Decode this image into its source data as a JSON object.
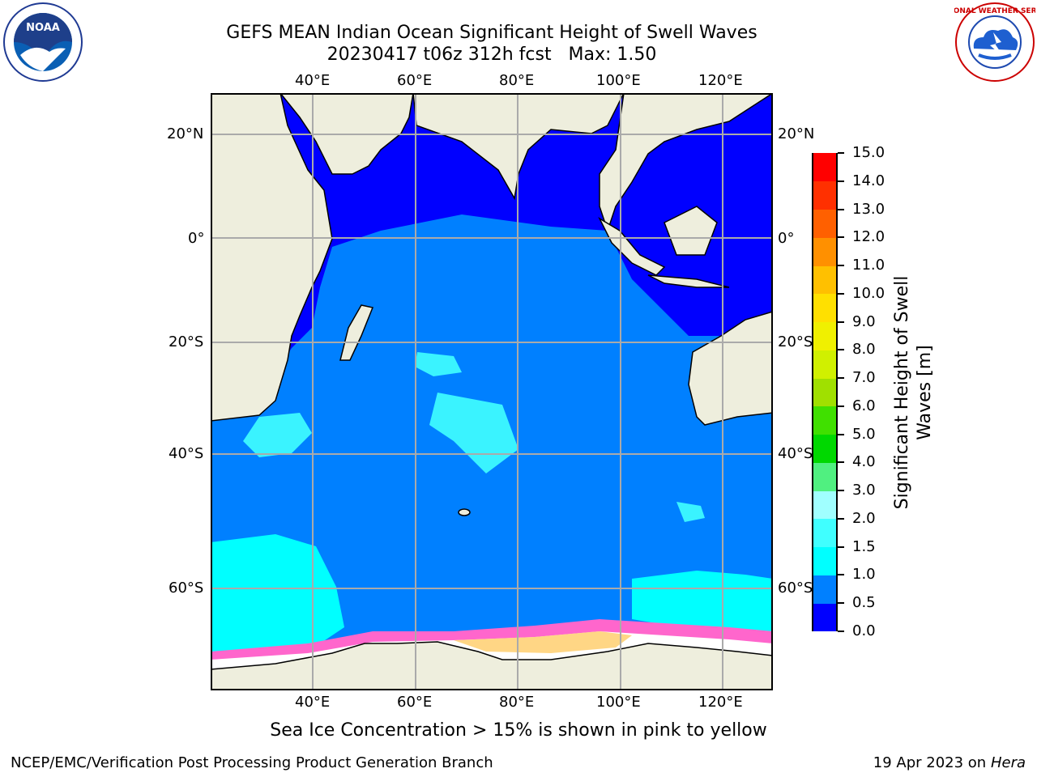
{
  "title": {
    "line1": "GEFS MEAN Indian Ocean Significant Height of Swell Waves",
    "line2": "20230417 t06z 312h fcst   Max: 1.50"
  },
  "logos": {
    "left_text": "NOAA",
    "right_text": "NATIONAL WEATHER SERVICE"
  },
  "map": {
    "lon_labels": [
      "40°E",
      "60°E",
      "80°E",
      "100°E",
      "120°E"
    ],
    "lat_labels": [
      "20°N",
      "0°",
      "20°S",
      "40°S",
      "60°S"
    ],
    "background_color": "#0080ff",
    "land_color": "#eeeedd"
  },
  "colorbar": {
    "label_line1": "Significant Height of Swell",
    "label_line2": "Waves [m]",
    "ticks": [
      "0.0",
      "0.5",
      "1.0",
      "1.5",
      "2.0",
      "3.0",
      "4.0",
      "5.0",
      "6.0",
      "7.0",
      "8.0",
      "9.0",
      "10.0",
      "11.0",
      "12.0",
      "13.0",
      "14.0",
      "15.0"
    ],
    "colors": [
      "#0000ff",
      "#0080ff",
      "#00ffff",
      "#40ffff",
      "#a0ffff",
      "#50f080",
      "#00d800",
      "#40e000",
      "#a0e000",
      "#d0f000",
      "#f0f000",
      "#ffe000",
      "#ffc000",
      "#ff9000",
      "#ff6000",
      "#ff3000",
      "#ff0000"
    ]
  },
  "annotation": "Sea Ice Concentration > 15% is shown in pink to yellow",
  "footer": {
    "left": "NCEP/EMC/Verification Post Processing Product Generation Branch",
    "date": "19 Apr 2023 on ",
    "machine": "Hera"
  }
}
